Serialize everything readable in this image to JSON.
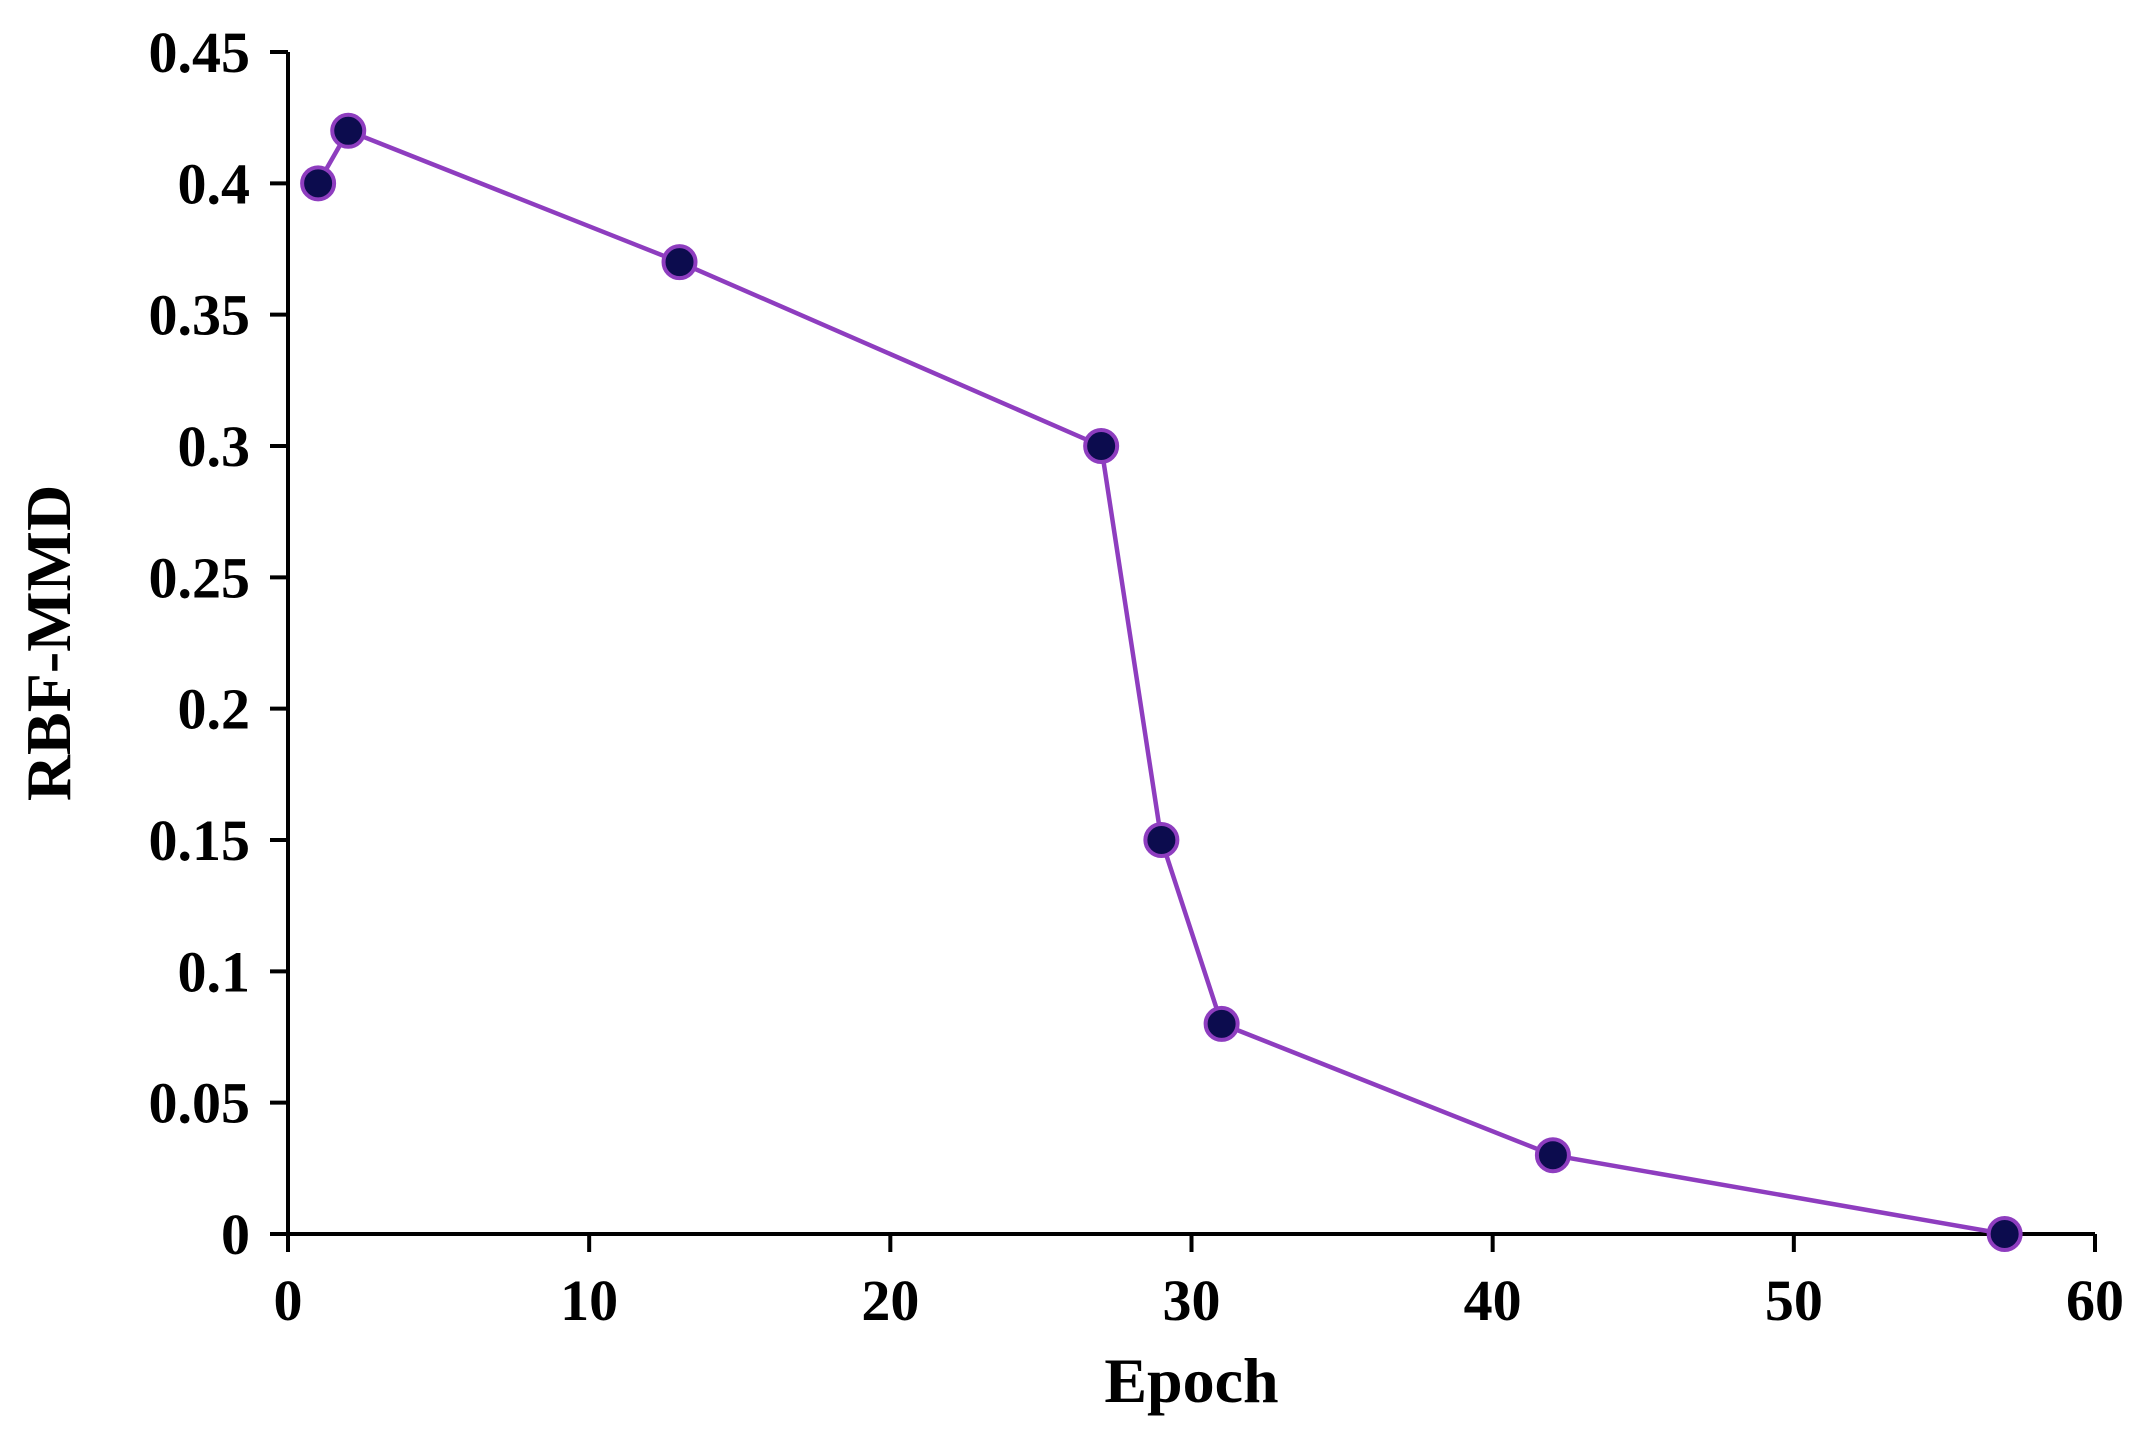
{
  "chart_data": {
    "type": "line",
    "title": "",
    "xlabel": "Epoch",
    "ylabel": "RBF-MMD",
    "xlim": [
      0,
      60
    ],
    "ylim": [
      0,
      0.45
    ],
    "x_ticks": [
      "0",
      "10",
      "20",
      "30",
      "40",
      "50",
      "60"
    ],
    "y_ticks": [
      "0",
      "0.05",
      "0.1",
      "0.15",
      "0.2",
      "0.25",
      "0.3",
      "0.35",
      "0.4",
      "0.45"
    ],
    "grid": false,
    "series": [
      {
        "x": [
          1,
          2,
          13,
          27,
          29,
          31,
          42,
          57
        ],
        "y": [
          0.4,
          0.42,
          0.37,
          0.3,
          0.15,
          0.08,
          0.03,
          0.0
        ]
      }
    ],
    "colors": {
      "line": "#8e3dbf",
      "marker_fill": "#0c0c4e",
      "marker_edge": "#8e3dbf",
      "axis": "#000000"
    }
  }
}
